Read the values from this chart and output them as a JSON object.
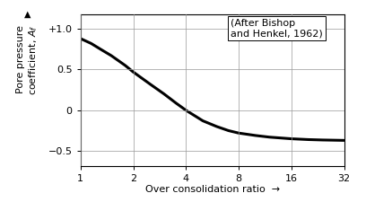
{
  "xlabel": "Over consolidation ratio",
  "ylabel_line1": "Pore pressure",
  "ylabel_line2": "coefficient, A",
  "annotation": "(After Bishop\nand Henkel, 1962)",
  "x_ticks": [
    1,
    2,
    4,
    8,
    16,
    32
  ],
  "x_tick_labels": [
    "1",
    "2",
    "4",
    "8",
    "16",
    "32"
  ],
  "y_ticks": [
    -0.5,
    0,
    0.5,
    1.0
  ],
  "y_tick_labels": [
    "−0.5",
    "0",
    "0.5",
    "+1.0"
  ],
  "ylim": [
    -0.68,
    1.18
  ],
  "xlim_log": [
    1,
    32
  ],
  "curve_x": [
    1,
    1.15,
    1.3,
    1.5,
    1.8,
    2,
    2.5,
    3,
    3.5,
    4,
    5,
    6,
    7,
    8,
    10,
    12,
    16,
    20,
    24,
    32
  ],
  "curve_y": [
    0.88,
    0.82,
    0.75,
    0.67,
    0.55,
    0.47,
    0.32,
    0.2,
    0.09,
    0.0,
    -0.13,
    -0.2,
    -0.25,
    -0.28,
    -0.31,
    -0.33,
    -0.35,
    -0.36,
    -0.365,
    -0.37
  ],
  "line_color": "#000000",
  "line_width": 2.2,
  "background_color": "#ffffff",
  "grid_color": "#999999",
  "annotation_fontsize": 8,
  "label_fontsize": 8,
  "tick_fontsize": 8
}
